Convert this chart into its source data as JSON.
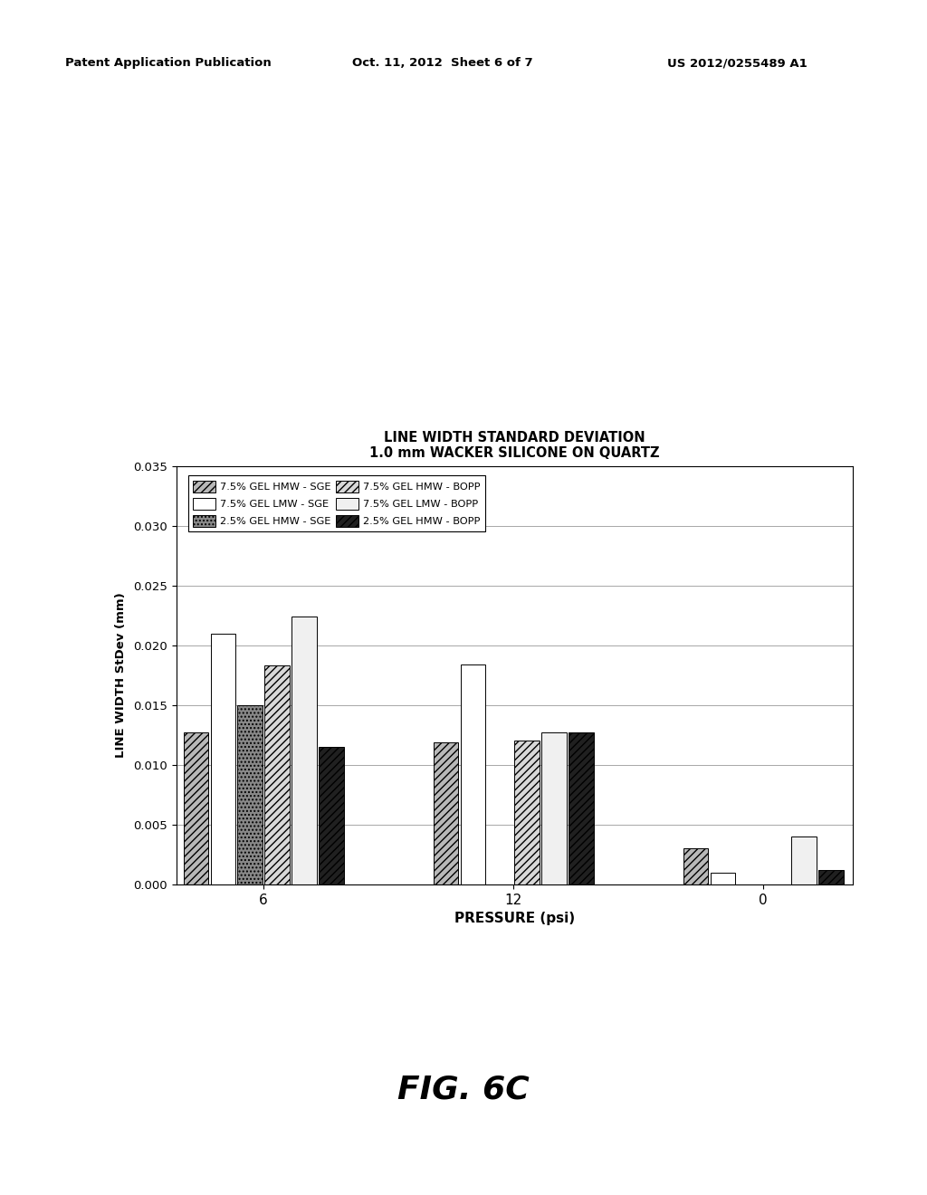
{
  "title_line1": "LINE WIDTH STANDARD DEVIATION",
  "title_line2": "1.0 mm WACKER SILICONE ON QUARTZ",
  "xlabel": "PRESSURE (psi)",
  "ylabel": "LINE WIDTH StDev (mm)",
  "header_left": "Patent Application Publication",
  "header_mid": "Oct. 11, 2012  Sheet 6 of 7",
  "header_right": "US 2012/0255489 A1",
  "fig_label": "FIG. 6C",
  "pressure_groups": [
    "6",
    "12",
    "0"
  ],
  "series_labels": [
    "7.5% GEL HMW - SGE",
    "7.5% GEL LMW - SGE",
    "2.5% GEL HMW - SGE",
    "7.5% GEL HMW - BOPP",
    "7.5% GEL LMW - BOPP",
    "2.5% GEL HMW - BOPP"
  ],
  "data": {
    "7.5% GEL HMW - SGE": [
      0.0127,
      0.0119,
      0.003
    ],
    "7.5% GEL LMW - SGE": [
      0.021,
      0.0184,
      0.001
    ],
    "2.5% GEL HMW - SGE": [
      0.015,
      0.0,
      0.0
    ],
    "7.5% GEL HMW - BOPP": [
      0.0183,
      0.012,
      0.0
    ],
    "7.5% GEL LMW - BOPP": [
      0.0224,
      0.0127,
      0.004
    ],
    "2.5% GEL HMW - BOPP": [
      0.0115,
      0.0127,
      0.0012
    ]
  },
  "ylim": [
    0.0,
    0.035
  ],
  "yticks": [
    0.0,
    0.005,
    0.01,
    0.015,
    0.02,
    0.025,
    0.03,
    0.035
  ],
  "group_centers": [
    0.42,
    1.62,
    2.82
  ],
  "bar_width": 0.13,
  "background_color": "#ffffff",
  "series_styles": [
    {
      "hatch": "////",
      "facecolor": "#b8b8b8",
      "edgecolor": "#000000",
      "lw": 0.7
    },
    {
      "hatch": "ZZZ",
      "facecolor": "#ffffff",
      "edgecolor": "#000000",
      "lw": 0.7
    },
    {
      "hatch": "....",
      "facecolor": "#888888",
      "edgecolor": "#000000",
      "lw": 0.7
    },
    {
      "hatch": "////",
      "facecolor": "#d8d8d8",
      "edgecolor": "#000000",
      "lw": 0.7
    },
    {
      "hatch": "ZZZ",
      "facecolor": "#f0f0f0",
      "edgecolor": "#000000",
      "lw": 0.7
    },
    {
      "hatch": "////",
      "facecolor": "#202020",
      "edgecolor": "#000000",
      "lw": 0.7
    }
  ],
  "legend_styles": [
    {
      "hatch": "////",
      "facecolor": "#b8b8b8",
      "edgecolor": "#000000"
    },
    {
      "hatch": "ZZZ",
      "facecolor": "#ffffff",
      "edgecolor": "#000000"
    },
    {
      "hatch": "....",
      "facecolor": "#888888",
      "edgecolor": "#000000"
    },
    {
      "hatch": "////",
      "facecolor": "#d8d8d8",
      "edgecolor": "#000000"
    },
    {
      "hatch": "ZZZ",
      "facecolor": "#f0f0f0",
      "edgecolor": "#000000"
    },
    {
      "hatch": "////",
      "facecolor": "#202020",
      "edgecolor": "#000000"
    }
  ]
}
